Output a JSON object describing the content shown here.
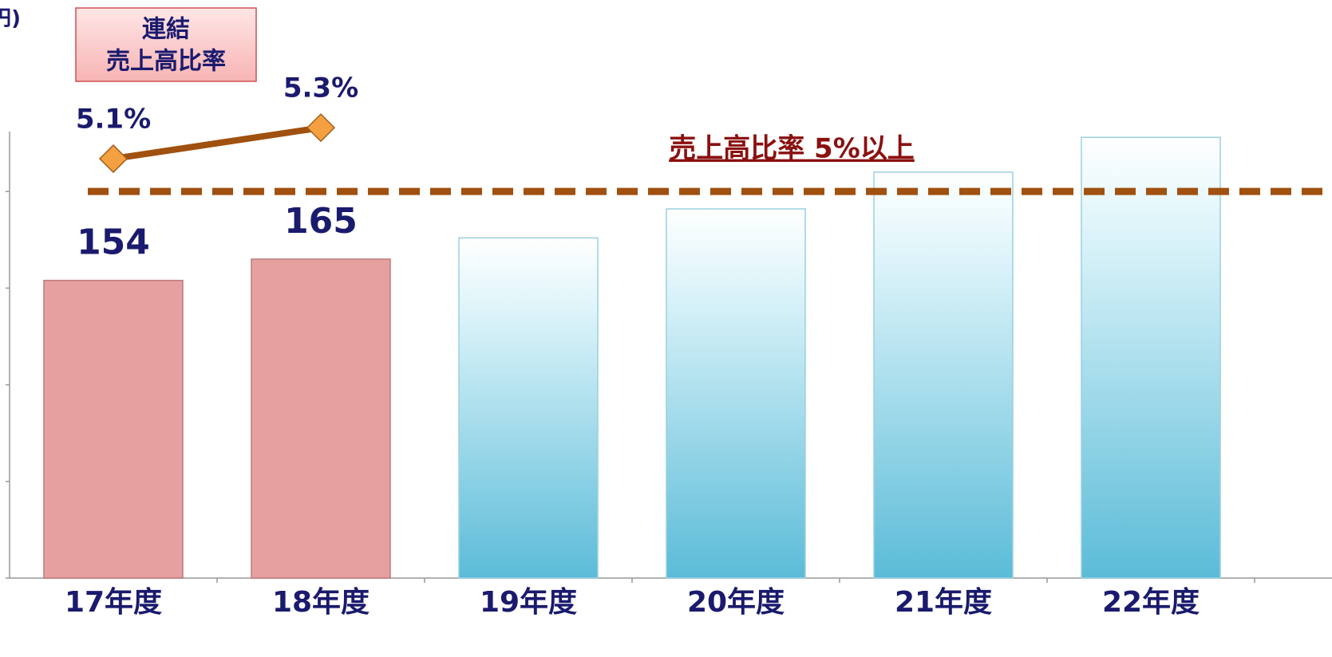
{
  "chart_data": {
    "type": "bar",
    "unit_label": "(億円)",
    "legend_box": [
      "連結",
      "売上高比率"
    ],
    "categories": [
      "17年度",
      "18年度",
      "19年度",
      "20年度",
      "21年度",
      "22年度"
    ],
    "series": [
      {
        "name": "売上高",
        "type": "bar",
        "colors": [
          "#e6a0a0",
          "#e6a0a0",
          "#5bbcd8",
          "#5bbcd8",
          "#5bbcd8",
          "#5bbcd8"
        ],
        "values": [
          154,
          165,
          176,
          191,
          210,
          228
        ],
        "value_labels": [
          "154",
          "165",
          null,
          null,
          null,
          null
        ]
      },
      {
        "name": "売上高比率",
        "type": "line",
        "axis": "y2",
        "color": "#a0500f",
        "marker_color": "#f5a040",
        "values": [
          5.1,
          5.3,
          null,
          null,
          null,
          null
        ],
        "value_labels": [
          "5.1%",
          "5.3%",
          null,
          null,
          null,
          null
        ]
      }
    ],
    "ylim": [
      0,
      231
    ],
    "yticks": [
      0,
      50,
      100,
      150,
      200
    ],
    "y2lim": [
      2.4,
      5.275
    ],
    "reference_line": {
      "value": 200,
      "label": "売上高比率 5%以上",
      "color": "#a0500f"
    }
  }
}
